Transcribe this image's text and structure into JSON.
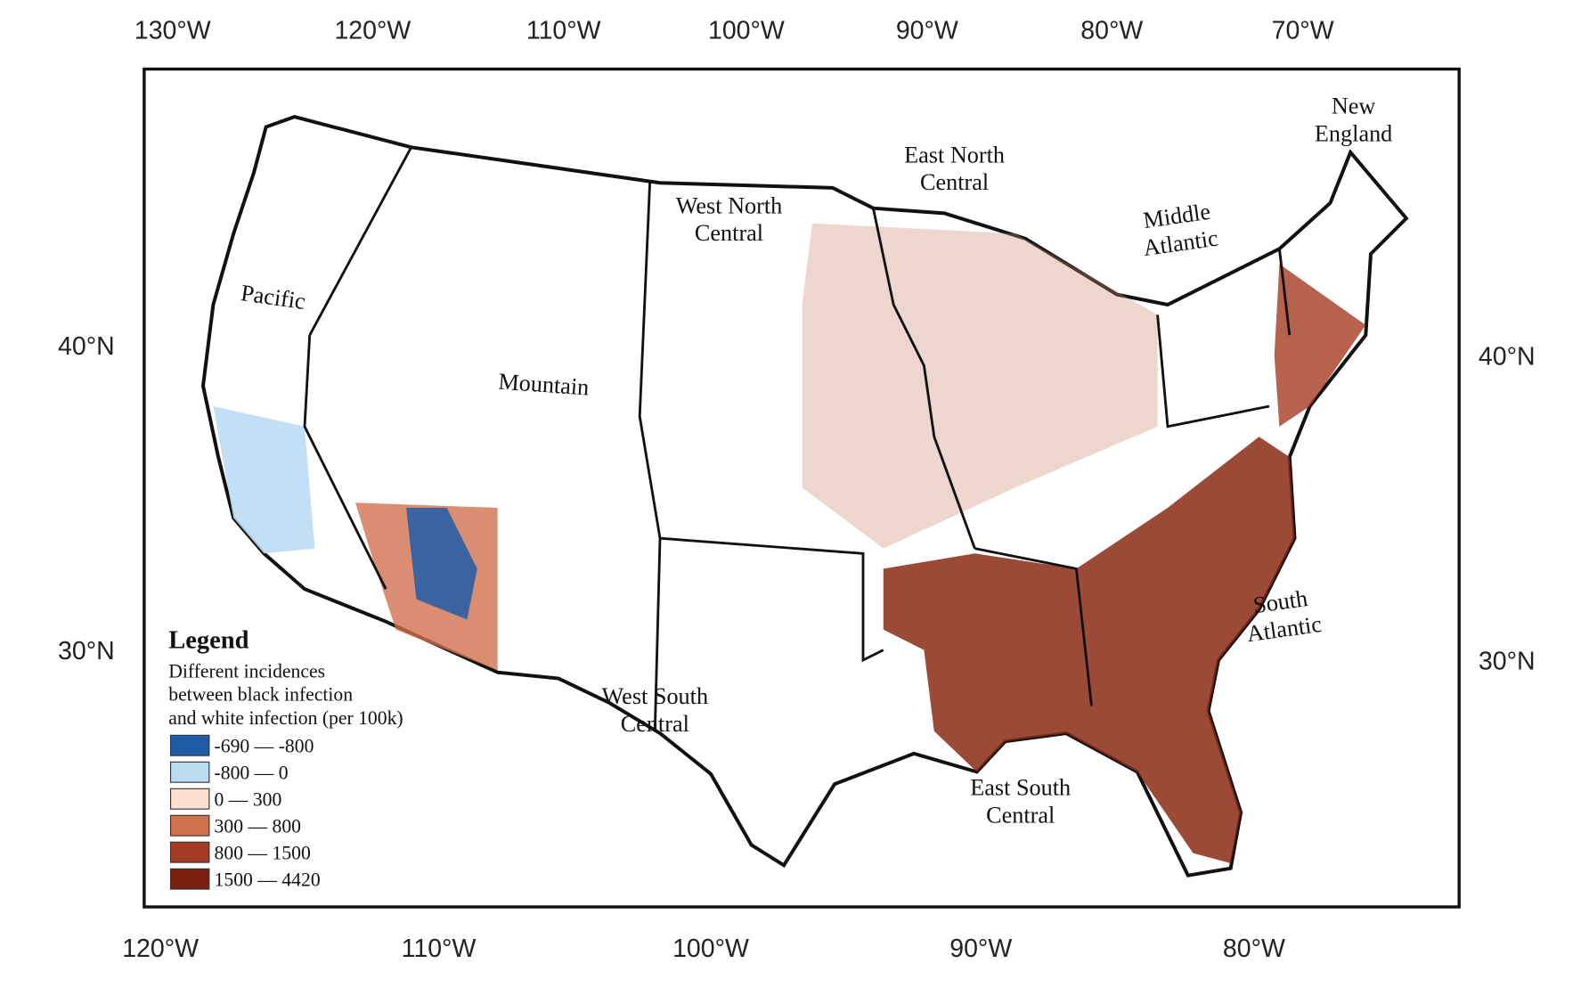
{
  "map": {
    "top_axis_labels": [
      "130°W",
      "120°W",
      "110°W",
      "100°W",
      "90°W",
      "80°W",
      "70°W"
    ],
    "bottom_axis_labels": [
      "120°W",
      "110°W",
      "100°W",
      "90°W",
      "80°W"
    ],
    "left_axis_labels": [
      "40°N",
      "30°N"
    ],
    "right_axis_labels": [
      "40°N",
      "30°N"
    ],
    "regions": [
      [
        "New",
        "England"
      ],
      [
        "East North",
        "Central"
      ],
      [
        "Middle",
        "Atlantic"
      ],
      [
        "West North",
        "Central"
      ],
      [
        "Pacific"
      ],
      [
        "Mountain"
      ],
      [
        "South",
        "Atlantic"
      ],
      [
        "West South",
        "Central"
      ],
      [
        "East South",
        "Central"
      ]
    ],
    "legend": {
      "title": "Legend",
      "description": [
        "Different incidences",
        "between black infection",
        "and white infection (per 100k)"
      ],
      "items": [
        {
          "label": "-690 — -800",
          "color": "#1f5ca8"
        },
        {
          "label": "-800 — 0",
          "color": "#bcdcf4"
        },
        {
          "label": "0 — 300",
          "color": "#fbdfd0"
        },
        {
          "label": "300 — 800",
          "color": "#d2714d"
        },
        {
          "label": "800 — 1500",
          "color": "#a53b22"
        },
        {
          "label": "1500 — 4420",
          "color": "#7a1e0e"
        }
      ]
    }
  }
}
